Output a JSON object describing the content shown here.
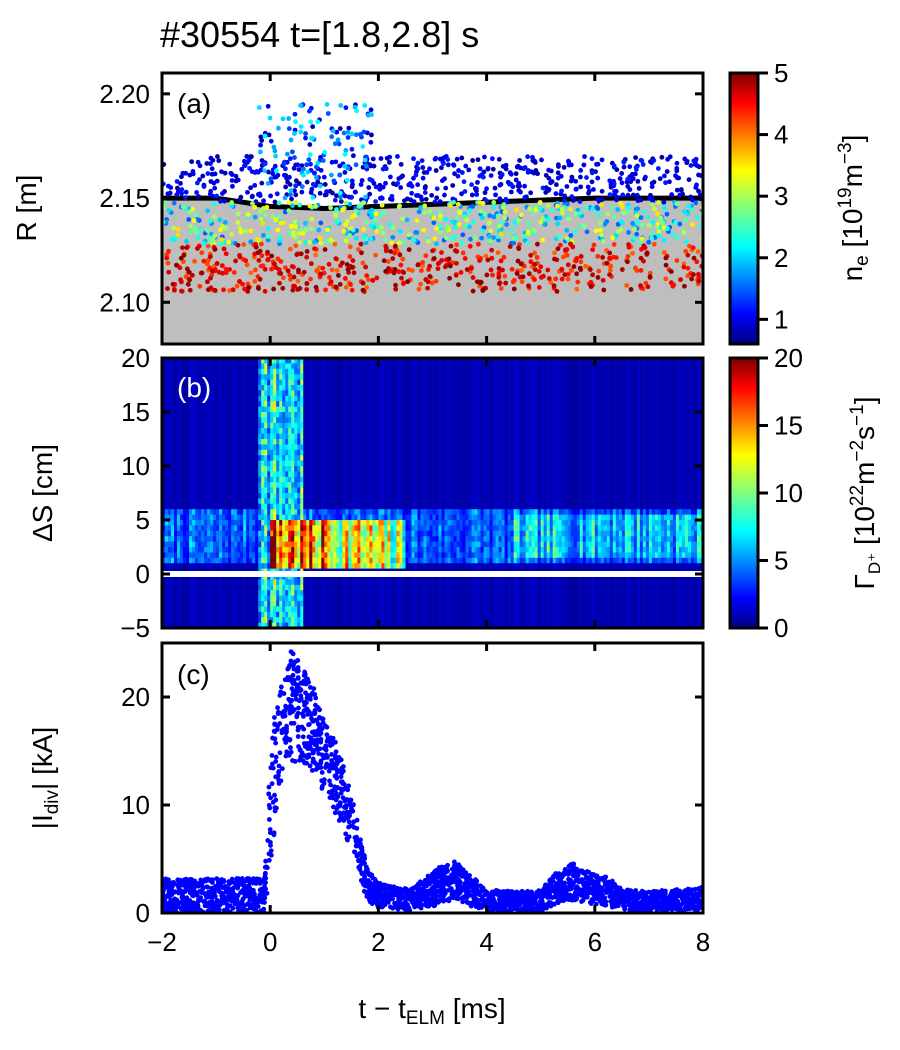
{
  "title": "#30554 t=[1.8,2.8] s",
  "colors": {
    "frame": "#000000",
    "separatrix_fill": "#bebebe",
    "separatrix_line": "#000000",
    "idiv_points": "#0000ff",
    "colormap": "jet",
    "gap_line": "#ffffff"
  },
  "chart_data": [
    {
      "panel": "a",
      "type": "scatter",
      "label": "(a)",
      "xlim": [
        -2,
        8
      ],
      "ylim": [
        2.08,
        2.21
      ],
      "yticks": [
        2.1,
        2.15,
        2.2
      ],
      "ytick_labels": [
        "2.10",
        "2.15",
        "2.20"
      ],
      "ylabel": "R [m]",
      "colorbar": {
        "label_main": "n",
        "label_sub": "e",
        "label_units": "[10",
        "label_exp": "19",
        "label_units2": "m",
        "label_exp2": "−3",
        "label_close": "]",
        "range": [
          0.6,
          5
        ],
        "ticks": [
          1,
          2,
          3,
          4,
          5
        ],
        "tick_labels": [
          "1",
          "2",
          "3",
          "4",
          "5"
        ]
      },
      "separatrix": {
        "x": [
          -2,
          -1,
          0,
          1,
          2,
          3,
          4,
          5,
          6,
          7,
          8
        ],
        "y": [
          2.15,
          2.15,
          2.146,
          2.145,
          2.146,
          2.147,
          2.148,
          2.149,
          2.15,
          2.15,
          2.15
        ]
      },
      "scatter_groups": [
        {
          "r_range": [
            2.105,
            2.128
          ],
          "ne_range": [
            4.0,
            5.0
          ],
          "density_profile": "uniform"
        },
        {
          "r_range": [
            2.128,
            2.148
          ],
          "ne_range": [
            1.5,
            3.5
          ],
          "density_profile": "uniform"
        },
        {
          "r_range": [
            2.148,
            2.17
          ],
          "ne_range": [
            0.7,
            1.3
          ],
          "density_profile": "uniform"
        },
        {
          "r_range": [
            2.15,
            2.195
          ],
          "ne_range": [
            0.7,
            2.3
          ],
          "t_range": [
            -0.3,
            1.9
          ],
          "density_profile": "elm_burst"
        }
      ]
    },
    {
      "panel": "b",
      "type": "heatmap",
      "label": "(b)",
      "xlim": [
        -2,
        8
      ],
      "ylim": [
        -5,
        20
      ],
      "yticks": [
        -5,
        0,
        5,
        10,
        15,
        20
      ],
      "ytick_labels": [
        "−5",
        "0",
        "5",
        "10",
        "15",
        "20"
      ],
      "ylabel": "ΔS [cm]",
      "colorbar": {
        "label_main": "Γ",
        "label_sub": "D⁺",
        "label_units": "[10",
        "label_exp": "22",
        "label_units2": "m",
        "label_exp2": "−2",
        "label_units3": "s",
        "label_exp3": "−1",
        "label_close": "]",
        "range": [
          0,
          20
        ],
        "ticks": [
          0,
          5,
          10,
          15,
          20
        ],
        "tick_labels": [
          "0",
          "5",
          "10",
          "15",
          "20"
        ]
      },
      "features": {
        "strike_line_ds": 0,
        "background_flux": 1,
        "inter_elm_band": {
          "ds_range": [
            1,
            6
          ],
          "flux": 6
        },
        "elm_peak": {
          "t": [
            0,
            2.5
          ],
          "ds_range": [
            0.5,
            5
          ],
          "flux": 18
        },
        "elm_tail": {
          "t": [
            -0.2,
            0.6
          ],
          "ds_range": [
            -5,
            20
          ],
          "flux": 9
        },
        "late_band": {
          "t": [
            4.5,
            8
          ],
          "ds_range": [
            1.5,
            5.5
          ],
          "flux": 7
        }
      }
    },
    {
      "panel": "c",
      "type": "scatter",
      "label": "(c)",
      "xlim": [
        -2,
        8
      ],
      "ylim": [
        0,
        25
      ],
      "yticks": [
        0,
        10,
        20
      ],
      "ytick_labels": [
        "0",
        "10",
        "20"
      ],
      "ylabel_pre": "|I",
      "ylabel_sub": "div",
      "ylabel_post": "| [kA]",
      "xticks": [
        -2,
        0,
        2,
        4,
        6,
        8
      ],
      "xtick_labels": [
        "−2",
        "0",
        "2",
        "4",
        "6",
        "8"
      ],
      "xlabel_pre": "t − t",
      "xlabel_sub": "ELM",
      "xlabel_post": " [ms]",
      "envelope": {
        "t": [
          -2.0,
          -0.1,
          0.0,
          0.2,
          0.4,
          0.6,
          0.8,
          1.0,
          1.2,
          1.4,
          1.6,
          1.8,
          2.0,
          2.2,
          2.6,
          3.0,
          3.2,
          3.4,
          3.6,
          4.0,
          4.5,
          5.0,
          5.3,
          5.6,
          5.8,
          6.2,
          6.5,
          7.0,
          7.5,
          8.0
        ],
        "upper": [
          3.2,
          3.2,
          16.0,
          22.0,
          24.5,
          23.0,
          21.0,
          18.0,
          16.0,
          13.0,
          9.0,
          4.0,
          2.8,
          2.5,
          2.2,
          3.8,
          4.5,
          4.8,
          4.0,
          2.2,
          2.0,
          2.1,
          3.8,
          4.6,
          4.0,
          3.5,
          2.2,
          2.0,
          2.2,
          2.4
        ],
        "lower": [
          0.0,
          0.0,
          4.0,
          12.0,
          14.0,
          14.0,
          13.0,
          11.0,
          9.0,
          7.0,
          4.0,
          1.0,
          0.5,
          0.3,
          0.2,
          0.5,
          1.0,
          1.2,
          0.8,
          0.2,
          0.1,
          0.2,
          0.8,
          1.2,
          1.0,
          0.6,
          0.3,
          0.1,
          0.2,
          0.3
        ]
      }
    }
  ]
}
